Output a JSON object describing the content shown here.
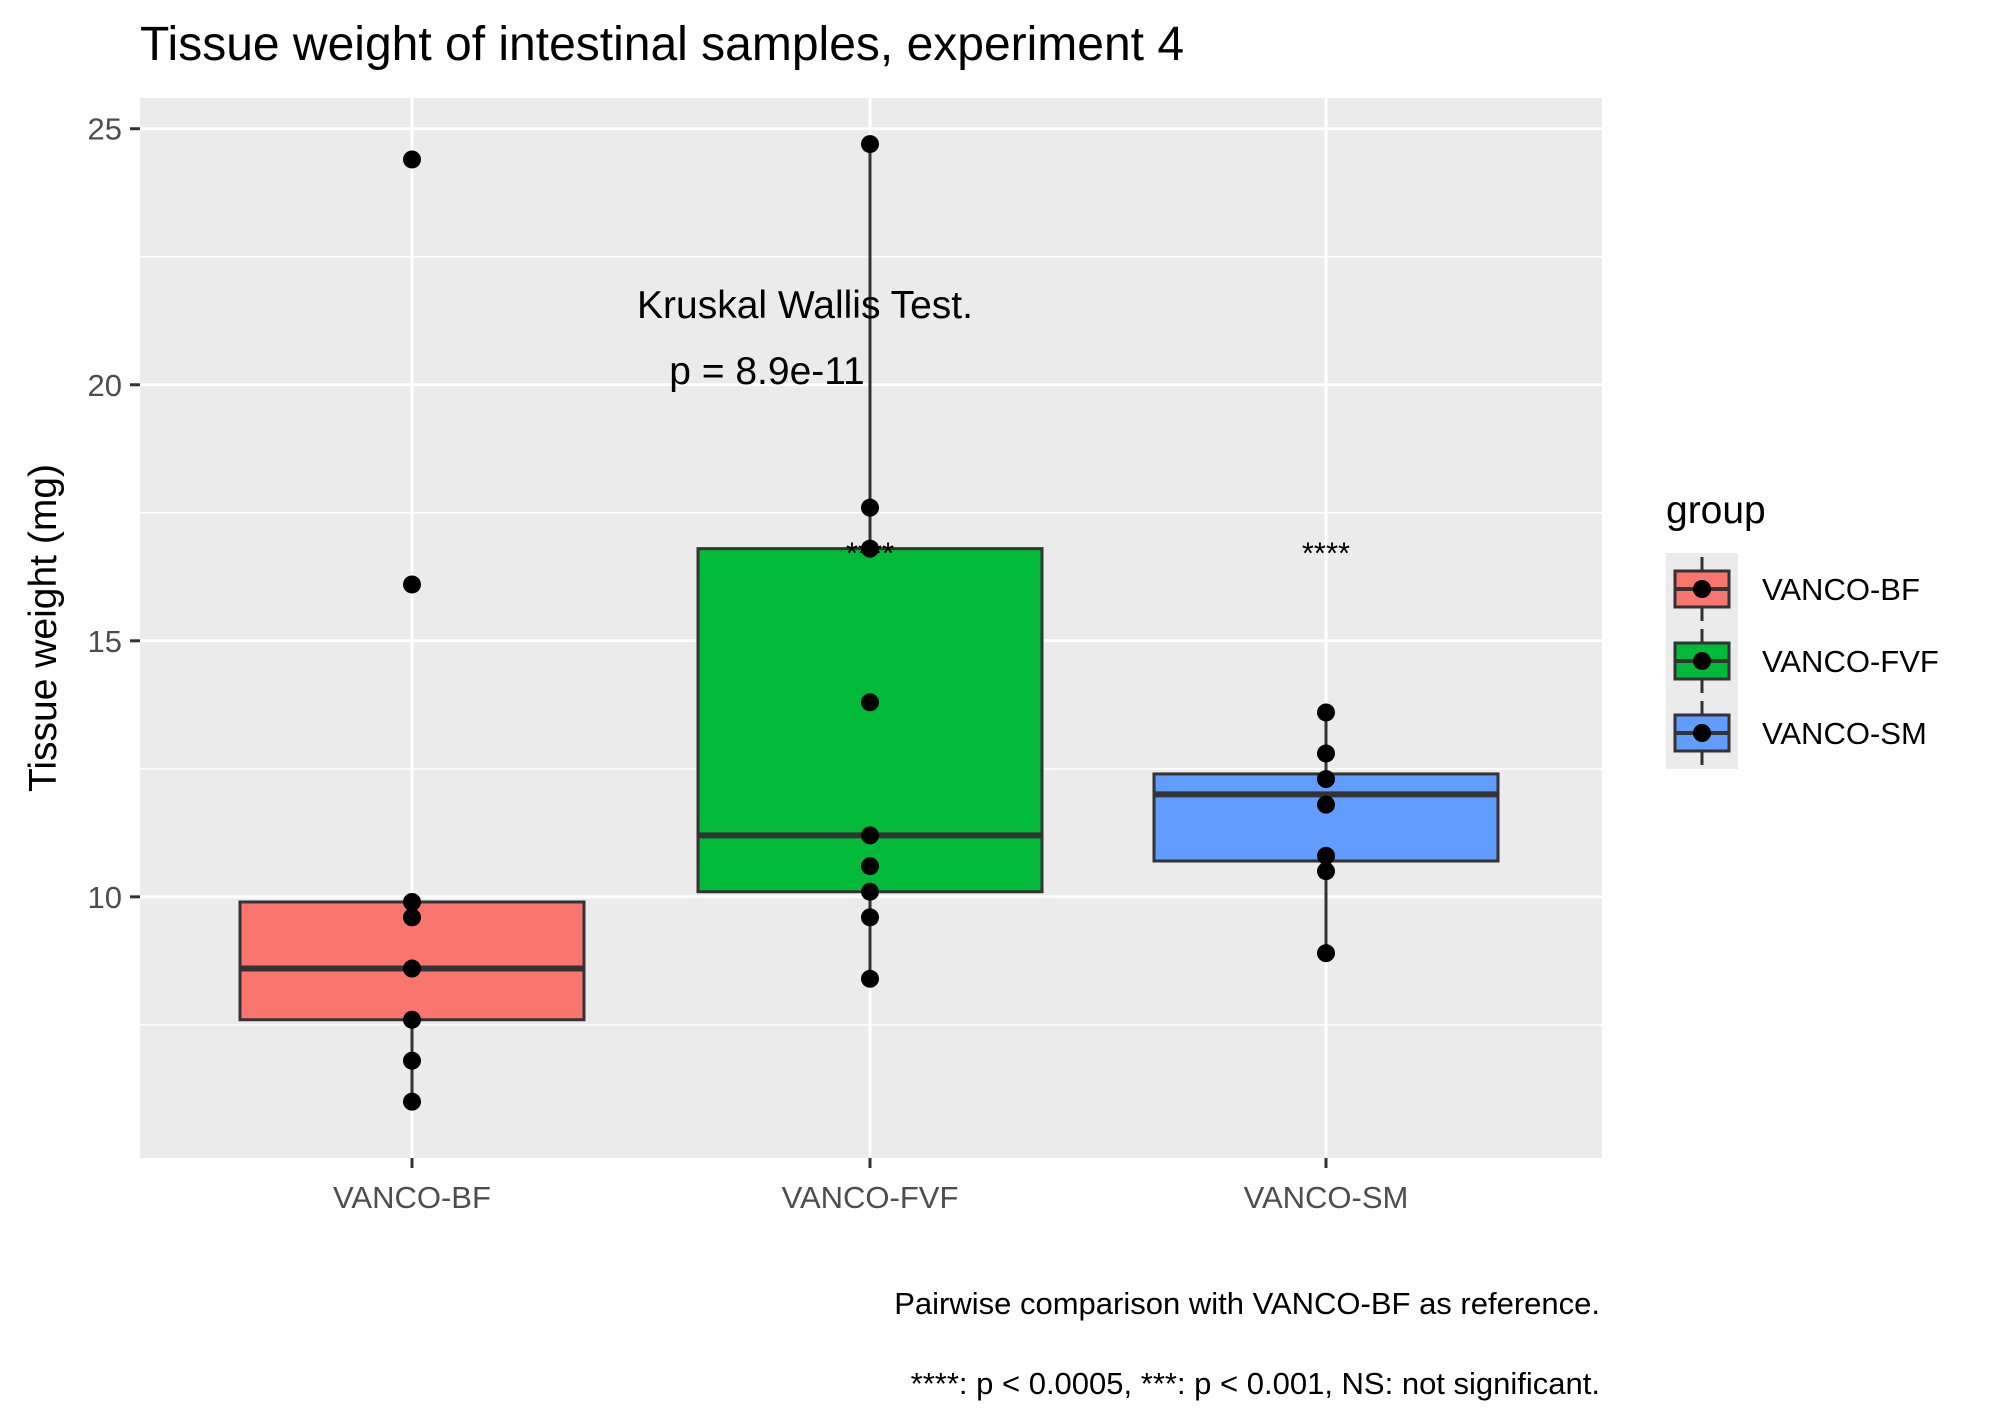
{
  "chart_data": {
    "type": "box",
    "title": "Tissue weight of intestinal samples, experiment 4",
    "xlabel": "",
    "ylabel": "Tissue weight (mg)",
    "ylim": [
      4.9,
      25.6
    ],
    "yticks": [
      10,
      15,
      20,
      25
    ],
    "categories": [
      "VANCO-BF",
      "VANCO-FVF",
      "VANCO-SM"
    ],
    "legend": {
      "title": "group",
      "position": "right"
    },
    "grid": true,
    "series": [
      {
        "name": "VANCO-BF",
        "color": "#F8766D",
        "box": {
          "lower_whisker": 6.0,
          "q1": 7.6,
          "median": 8.6,
          "q3": 9.9,
          "upper_whisker": 9.9
        },
        "points": [
          24.4,
          16.1,
          9.9,
          9.6,
          8.6,
          7.6,
          6.8,
          6.0
        ]
      },
      {
        "name": "VANCO-FVF",
        "color": "#00BA38",
        "box": {
          "lower_whisker": 8.4,
          "q1": 10.1,
          "median": 11.2,
          "q3": 16.8,
          "upper_whisker": 24.7
        },
        "points": [
          24.7,
          17.6,
          16.8,
          13.8,
          11.2,
          10.6,
          10.1,
          9.6,
          8.4
        ]
      },
      {
        "name": "VANCO-SM",
        "color": "#619CFF",
        "box": {
          "lower_whisker": 8.9,
          "q1": 10.7,
          "median": 12.0,
          "q3": 12.4,
          "upper_whisker": 13.6
        },
        "points": [
          13.6,
          12.8,
          12.3,
          11.8,
          10.8,
          10.5,
          8.9
        ]
      }
    ],
    "annotations": {
      "test_line1": "Kruskal Wallis Test.",
      "test_line2": "p = 8.9e-11",
      "significance": [
        {
          "category": "VANCO-FVF",
          "label": "****",
          "y": 16.7
        },
        {
          "category": "VANCO-SM",
          "label": "****",
          "y": 16.7
        }
      ]
    },
    "caption": [
      "Pairwise comparison with VANCO-BF as reference.",
      "****: p < 0.0005, ***: p < 0.001, NS: not significant."
    ]
  }
}
